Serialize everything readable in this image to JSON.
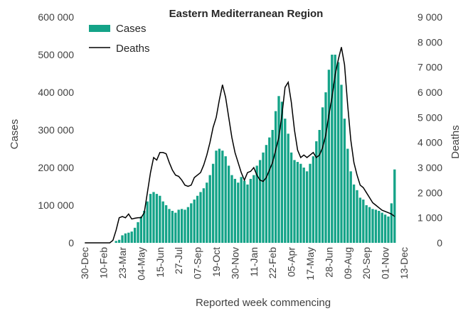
{
  "chart_data": {
    "type": "bar",
    "title": "Eastern Mediterranean Region",
    "xlabel": "Reported week commencing",
    "ylabel_left": "Cases",
    "ylabel_right": "Deaths",
    "ylim_left": [
      0,
      600000
    ],
    "ylim_right": [
      0,
      9000
    ],
    "left_ticks": [
      "0",
      "100 000",
      "200 000",
      "300 000",
      "400 000",
      "500 000",
      "600 000"
    ],
    "right_ticks": [
      "0",
      "1 000",
      "2 000",
      "3 000",
      "4 000",
      "5 000",
      "6 000",
      "7 000",
      "8 000",
      "9 000"
    ],
    "x_tick_labels": [
      "30-Dec",
      "10-Feb",
      "23-Mar",
      "04-May",
      "15-Jun",
      "27-Jul",
      "07-Sep",
      "19-Oct",
      "30-Nov",
      "11-Jan",
      "22-Feb",
      "05-Apr",
      "17-May",
      "28-Jun",
      "09-Aug",
      "20-Sep",
      "01-Nov",
      "13-Dec"
    ],
    "legend_position": "top-left",
    "colors": {
      "cases": "#14a388",
      "deaths": "#000000"
    },
    "series": [
      {
        "name": "Cases",
        "type": "bar",
        "axis": "left",
        "values": [
          0,
          0,
          0,
          0,
          0,
          0,
          0,
          0,
          0,
          0,
          5000,
          8000,
          20000,
          25000,
          27000,
          30000,
          40000,
          55000,
          70000,
          85000,
          110000,
          130000,
          135000,
          130000,
          125000,
          110000,
          100000,
          90000,
          85000,
          80000,
          88000,
          90000,
          88000,
          95000,
          105000,
          115000,
          125000,
          135000,
          145000,
          160000,
          180000,
          210000,
          245000,
          250000,
          245000,
          230000,
          205000,
          180000,
          170000,
          160000,
          175000,
          165000,
          155000,
          170000,
          180000,
          205000,
          220000,
          240000,
          260000,
          280000,
          300000,
          350000,
          390000,
          375000,
          330000,
          290000,
          240000,
          220000,
          215000,
          210000,
          200000,
          190000,
          210000,
          230000,
          270000,
          300000,
          360000,
          400000,
          460000,
          500000,
          500000,
          480000,
          420000,
          330000,
          250000,
          190000,
          155000,
          140000,
          120000,
          115000,
          100000,
          95000,
          90000,
          88000,
          85000,
          80000,
          75000,
          70000,
          105000,
          195000
        ]
      },
      {
        "name": "Deaths",
        "type": "line",
        "axis": "right",
        "values": [
          0,
          0,
          0,
          0,
          0,
          0,
          0,
          0,
          0,
          100,
          500,
          1000,
          1050,
          1000,
          1150,
          950,
          980,
          1000,
          1000,
          1200,
          2000,
          2800,
          3400,
          3300,
          3600,
          3600,
          3550,
          3200,
          2900,
          2700,
          2650,
          2500,
          2300,
          2250,
          2300,
          2600,
          2700,
          2800,
          3100,
          3500,
          4000,
          4600,
          5000,
          5700,
          6300,
          5800,
          5000,
          4200,
          3600,
          3200,
          2800,
          2500,
          2800,
          2850,
          3000,
          2700,
          2500,
          2450,
          2600,
          2900,
          3200,
          3700,
          4200,
          5100,
          6200,
          6400,
          5600,
          4500,
          3700,
          3400,
          3500,
          3400,
          3500,
          3600,
          3400,
          3500,
          3800,
          4300,
          5100,
          5800,
          6700,
          7300,
          7800,
          7100,
          5500,
          4100,
          3200,
          2700,
          2300,
          2200,
          2000,
          1800,
          1600,
          1500,
          1400,
          1300,
          1250,
          1200,
          1150,
          1050
        ]
      }
    ]
  }
}
